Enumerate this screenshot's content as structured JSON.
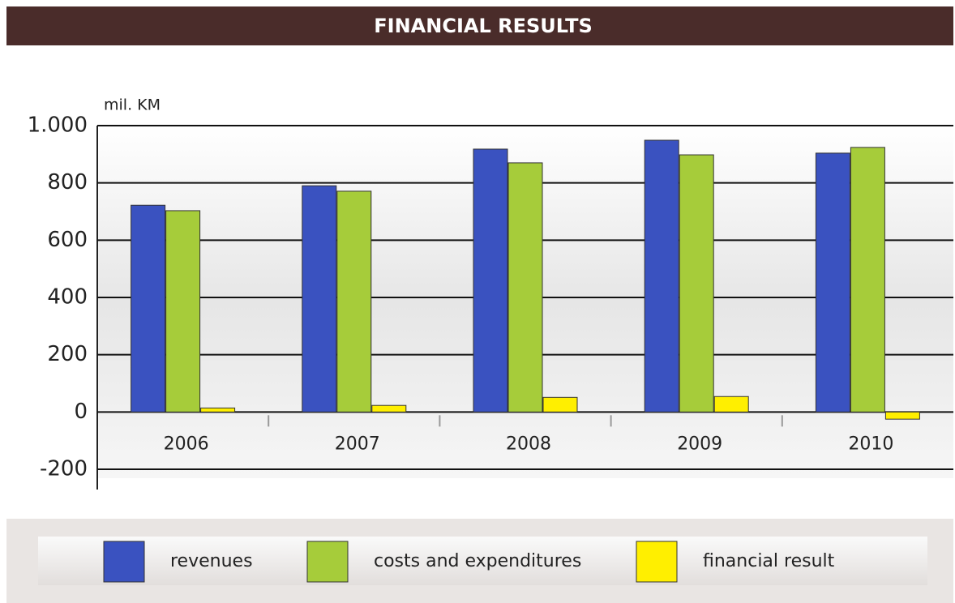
{
  "chart_data": {
    "type": "bar",
    "title": "FINANCIAL RESULTS",
    "y_label": "mil. KM",
    "categories": [
      "2006",
      "2007",
      "2008",
      "2009",
      "2010"
    ],
    "series": [
      {
        "name": "revenues",
        "color": "#3a52c0",
        "values": [
          722,
          790,
          918,
          949,
          904
        ]
      },
      {
        "name": "costs and expenditures",
        "color": "#a6cc3a",
        "values": [
          703,
          771,
          870,
          898,
          924
        ]
      },
      {
        "name": "financial result",
        "color": "#ffef00",
        "values": [
          14,
          23,
          51,
          54,
          -25
        ]
      }
    ],
    "ylim": [
      -200,
      1000
    ],
    "yticks": [
      -200,
      0,
      200,
      400,
      600,
      800,
      {
        "value": 1000,
        "label": "1.000"
      }
    ],
    "grid": true,
    "legend": "bottom"
  }
}
